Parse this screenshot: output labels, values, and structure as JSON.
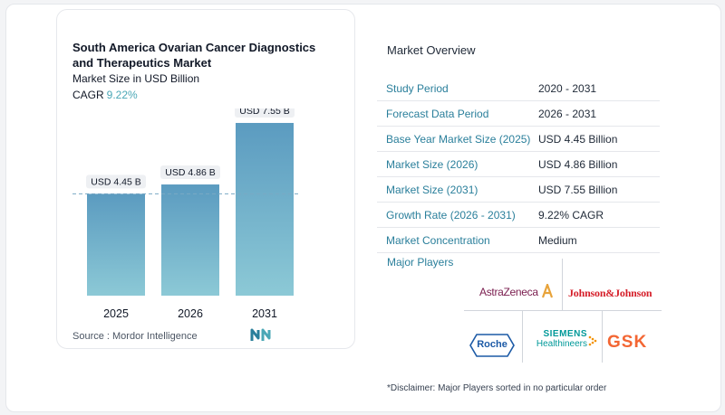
{
  "chart_data": {
    "type": "bar",
    "title": "South America Ovarian Cancer Diagnostics and Therapeutics Market",
    "subtitle": "Market Size in USD Billion",
    "cagr_label": "CAGR",
    "cagr_value": "9.22%",
    "categories": [
      "2025",
      "2026",
      "2031"
    ],
    "values": [
      4.45,
      4.86,
      7.55
    ],
    "data_labels": [
      "USD 4.45 B",
      "USD 4.86 B",
      "USD 7.55 B"
    ],
    "ylim": [
      0,
      8.3
    ],
    "reference_line_value": 4.45,
    "bar_color_top": "#5b9bc0",
    "bar_color_bottom": "#8cc9d6"
  },
  "source": "Source :  Mordor Intelligence",
  "overview": {
    "title": "Market Overview",
    "rows": [
      {
        "label": "Study Period",
        "value": "2020 - 2031"
      },
      {
        "label": "Forecast Data Period",
        "value": "2026 - 2031"
      },
      {
        "label": "Base Year Market Size (2025)",
        "value": "USD 4.45 Billion"
      },
      {
        "label": "Market Size (2026)",
        "value": "USD 4.86 Billion"
      },
      {
        "label": "Market Size (2031)",
        "value": "USD 7.55 Billion"
      },
      {
        "label": "Growth Rate (2026 - 2031)",
        "value": "9.22% CAGR"
      },
      {
        "label": "Market Concentration",
        "value": "Medium"
      }
    ]
  },
  "players": {
    "title": "Major Players",
    "names": [
      "AstraZeneca",
      "Johnson&Johnson",
      "Roche",
      "SIEMENS",
      "Healthineers",
      "GSK"
    ],
    "colors": {
      "astrazeneca": "#7a1d4e",
      "astrazeneca_mark": "#e8a33a",
      "jnj": "#d51e29",
      "roche": "#1c5aa6",
      "siemens": "#009999",
      "siemens_dots": "#f39200",
      "gsk": "#f36633"
    }
  },
  "disclaimer": "*Disclaimer: Major Players sorted in no particular order",
  "colors": {
    "accent": "#2a7f9b",
    "cagr": "#4aa7b6"
  }
}
